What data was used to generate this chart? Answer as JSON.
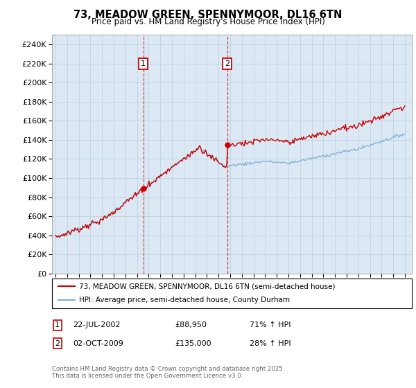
{
  "title": "73, MEADOW GREEN, SPENNYMOOR, DL16 6TN",
  "subtitle": "Price paid vs. HM Land Registry's House Price Index (HPI)",
  "legend_line1": "73, MEADOW GREEN, SPENNYMOOR, DL16 6TN (semi-detached house)",
  "legend_line2": "HPI: Average price, semi-detached house, County Durham",
  "footer": "Contains HM Land Registry data © Crown copyright and database right 2025.\nThis data is licensed under the Open Government Licence v3.0.",
  "sale1_date": "22-JUL-2002",
  "sale1_price": 88950,
  "sale1_label": "1",
  "sale1_hpi": "71% ↑ HPI",
  "sale2_date": "02-OCT-2009",
  "sale2_price": 135000,
  "sale2_label": "2",
  "sale2_hpi": "28% ↑ HPI",
  "red_color": "#cc0000",
  "blue_color": "#7ab0d4",
  "bg_color": "#dce9f5",
  "plot_bg": "#ffffff",
  "grid_color": "#b8cfe0",
  "ylim": [
    0,
    250000
  ],
  "yticks": [
    0,
    20000,
    40000,
    60000,
    80000,
    100000,
    120000,
    140000,
    160000,
    180000,
    200000,
    220000,
    240000
  ],
  "x_start_year": 1995,
  "x_end_year": 2025,
  "sale1_t": 2002.542,
  "sale2_t": 2009.75
}
